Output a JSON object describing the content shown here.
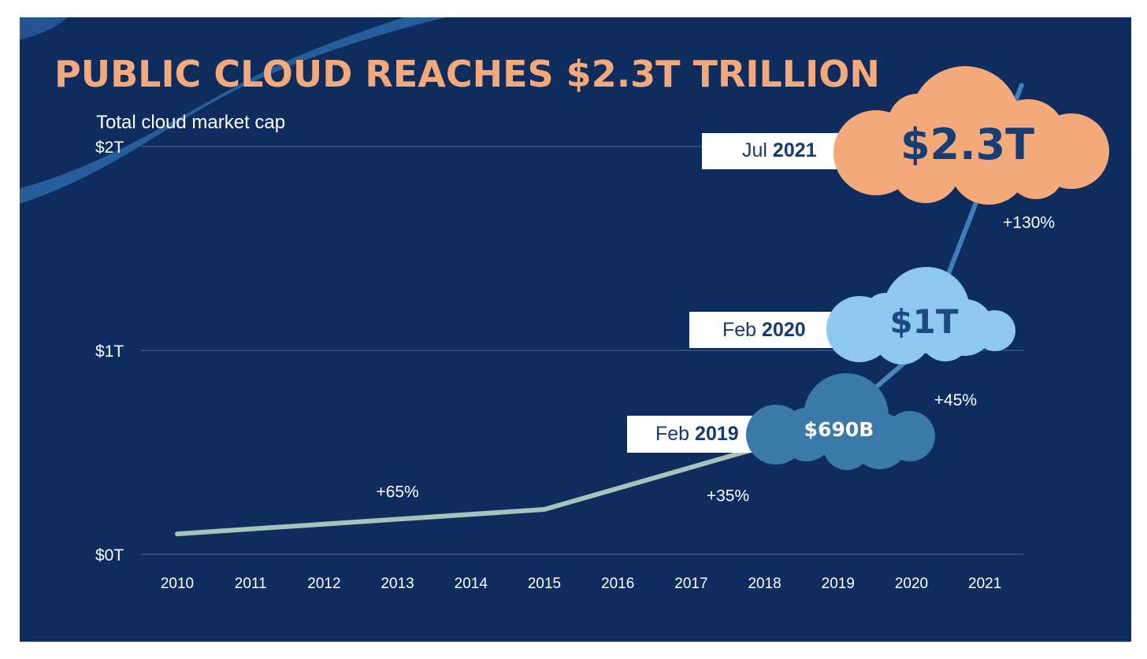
{
  "chart_data": {
    "type": "line",
    "title": "PUBLIC CLOUD REACHES $2.3T TRILLION",
    "subtitle": "Total cloud market cap",
    "y_ticks": [
      "$0T",
      "$1T",
      "$2T"
    ],
    "ylim": [
      0,
      2
    ],
    "categories": [
      "2010",
      "2011",
      "2012",
      "2013",
      "2014",
      "2015",
      "2016",
      "2017",
      "2018",
      "2019",
      "2020",
      "2021"
    ],
    "series": [
      {
        "points": [
          {
            "x": 2010.0,
            "y": 0.1
          },
          {
            "x": 2015.0,
            "y": 0.22
          },
          {
            "x": 2018.0,
            "y": 0.53
          },
          {
            "x": 2019.1,
            "y": 0.69
          },
          {
            "x": 2020.1,
            "y": 1.0
          },
          {
            "x": 2021.5,
            "y": 2.3
          }
        ],
        "colors": [
          "#a7c4b8",
          "#a7c4b8",
          "#a7c4b8",
          "#4a86b8",
          "#3d7fbd"
        ]
      }
    ],
    "growth_labels": [
      {
        "text": "+65%",
        "x": 2013.0,
        "y": 0.28
      },
      {
        "text": "+35%",
        "x": 2017.5,
        "y": 0.26
      },
      {
        "text": "+45%",
        "x": 2020.6,
        "y": 0.73
      },
      {
        "text": "+130%",
        "x": 2021.6,
        "y": 1.6
      }
    ],
    "callouts": [
      {
        "month": "Feb",
        "year": "2019",
        "value": "$690B",
        "cloud_color": "#3a79a8",
        "value_color": "#ffffff"
      },
      {
        "month": "Feb",
        "year": "2020",
        "value": "$1T",
        "cloud_color": "#8ec8f0",
        "value_color": "#1d4a82"
      },
      {
        "month": "Jul",
        "year": "2021",
        "value": "$2.3T",
        "cloud_color": "#f4a97b",
        "value_color": "#163e74"
      }
    ]
  },
  "colors": {
    "background": "#0e2d5e",
    "title": "#f4a97b",
    "gridline": "#4f6b96",
    "swoosh": "#2d6fb0"
  }
}
